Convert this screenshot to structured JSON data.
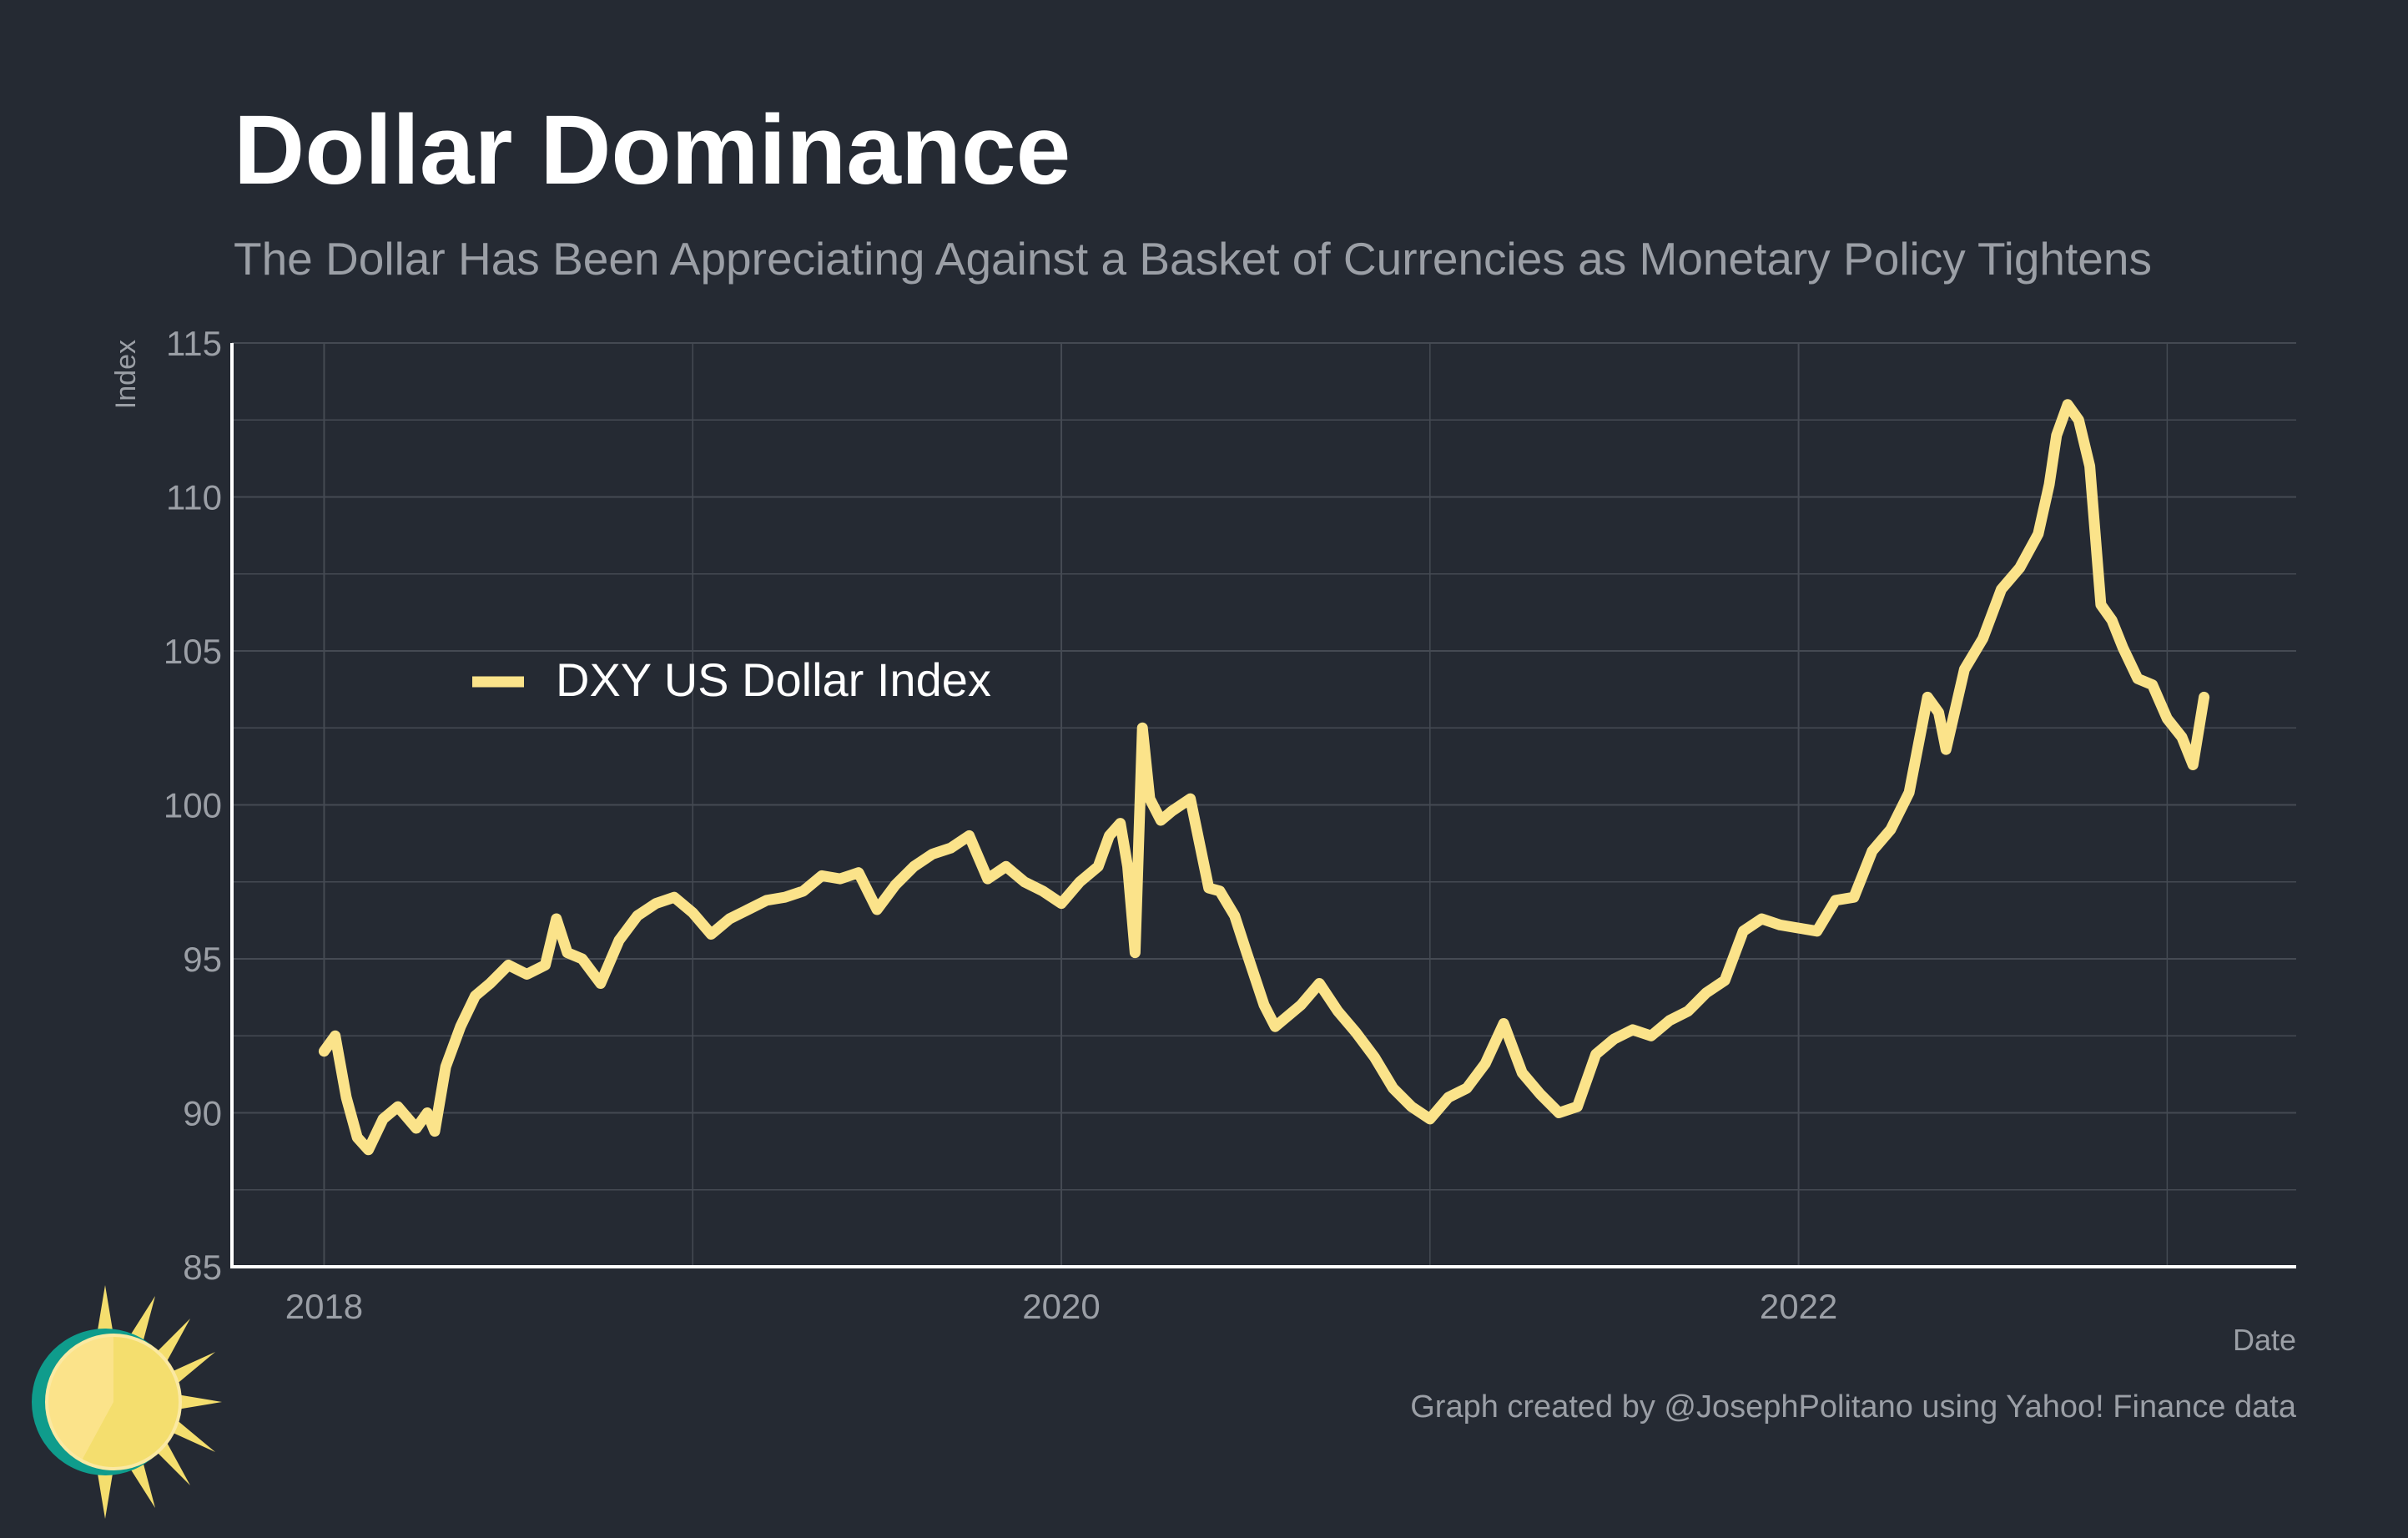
{
  "title": "Dollar Dominance",
  "subtitle": "The Dollar Has Been Appreciating Against a Basket of Currencies as Monetary Policy Tightens",
  "credit": "Graph created by @JosephPolitano using Yahoo! Finance data",
  "colors": {
    "background": "#252a33",
    "line": "#fbe38a",
    "grid": "#454a53",
    "axis": "#ffffff",
    "text_muted": "#9b9fa6"
  },
  "chart_data": {
    "type": "line",
    "title": "Dollar Dominance",
    "subtitle": "The Dollar Has Been Appreciating Against a Basket of Currencies as Monetary Policy Tightens",
    "xlabel": "Date",
    "ylabel": "Index",
    "xlim": [
      2017.75,
      2023.35
    ],
    "ylim": [
      85,
      115
    ],
    "x_ticks": [
      2018,
      2020,
      2022
    ],
    "x_tick_labels": [
      "2018",
      "2020",
      "2022"
    ],
    "y_ticks": [
      85,
      90,
      95,
      100,
      105,
      110,
      115
    ],
    "y_tick_labels": [
      "85",
      "90",
      "95",
      "100",
      "105",
      "110",
      "115"
    ],
    "grid": true,
    "legend_position": "left, middle of plot",
    "series": [
      {
        "name": "DXY US Dollar Index",
        "color": "#fbe38a",
        "x": [
          2018.0,
          2018.03,
          2018.06,
          2018.09,
          2018.12,
          2018.16,
          2018.2,
          2018.25,
          2018.28,
          2018.3,
          2018.33,
          2018.37,
          2018.41,
          2018.45,
          2018.5,
          2018.55,
          2018.6,
          2018.63,
          2018.66,
          2018.7,
          2018.75,
          2018.8,
          2018.85,
          2018.9,
          2018.95,
          2019.0,
          2019.05,
          2019.1,
          2019.15,
          2019.2,
          2019.25,
          2019.3,
          2019.35,
          2019.4,
          2019.45,
          2019.5,
          2019.55,
          2019.6,
          2019.65,
          2019.7,
          2019.75,
          2019.8,
          2019.85,
          2019.9,
          2019.95,
          2020.0,
          2020.05,
          2020.1,
          2020.13,
          2020.16,
          2020.18,
          2020.2,
          2020.22,
          2020.24,
          2020.27,
          2020.3,
          2020.35,
          2020.4,
          2020.43,
          2020.47,
          2020.5,
          2020.55,
          2020.58,
          2020.6,
          2020.65,
          2020.7,
          2020.75,
          2020.8,
          2020.85,
          2020.9,
          2020.95,
          2021.0,
          2021.05,
          2021.1,
          2021.15,
          2021.2,
          2021.25,
          2021.3,
          2021.35,
          2021.4,
          2021.45,
          2021.5,
          2021.55,
          2021.6,
          2021.65,
          2021.7,
          2021.75,
          2021.8,
          2021.85,
          2021.9,
          2021.95,
          2022.0,
          2022.05,
          2022.1,
          2022.15,
          2022.2,
          2022.25,
          2022.3,
          2022.35,
          2022.38,
          2022.4,
          2022.45,
          2022.5,
          2022.55,
          2022.6,
          2022.65,
          2022.68,
          2022.7,
          2022.73,
          2022.76,
          2022.79,
          2022.82,
          2022.85,
          2022.88,
          2022.92,
          2022.96,
          2023.0,
          2023.04,
          2023.07,
          2023.1
        ],
        "y": [
          92.0,
          92.5,
          90.5,
          89.2,
          88.8,
          89.8,
          90.2,
          89.5,
          90.0,
          89.4,
          91.5,
          92.8,
          93.8,
          94.2,
          94.8,
          94.5,
          94.8,
          96.3,
          95.2,
          95.0,
          94.2,
          95.6,
          96.4,
          96.8,
          97.0,
          96.5,
          95.8,
          96.3,
          96.6,
          96.9,
          97.0,
          97.2,
          97.7,
          97.6,
          97.8,
          96.6,
          97.4,
          98.0,
          98.4,
          98.6,
          99.0,
          97.6,
          98.0,
          97.5,
          97.2,
          96.8,
          97.5,
          98.0,
          99.0,
          99.4,
          98.0,
          95.2,
          102.5,
          100.2,
          99.5,
          99.8,
          100.2,
          97.3,
          97.2,
          96.4,
          95.3,
          93.5,
          92.8,
          93.0,
          93.5,
          94.2,
          93.3,
          92.6,
          91.8,
          90.8,
          90.2,
          89.8,
          90.5,
          90.8,
          91.6,
          92.9,
          91.3,
          90.6,
          90.0,
          90.2,
          91.9,
          92.4,
          92.7,
          92.5,
          93.0,
          93.3,
          93.9,
          94.3,
          95.9,
          96.3,
          96.1,
          96.0,
          95.9,
          96.9,
          97.0,
          98.5,
          99.2,
          100.4,
          103.5,
          103.0,
          101.8,
          104.4,
          105.4,
          107.0,
          107.7,
          108.8,
          110.4,
          112.0,
          113.0,
          112.5,
          111.0,
          106.5,
          106.0,
          105.1,
          104.1,
          103.9,
          102.8,
          102.2,
          101.3,
          103.5
        ]
      }
    ]
  }
}
